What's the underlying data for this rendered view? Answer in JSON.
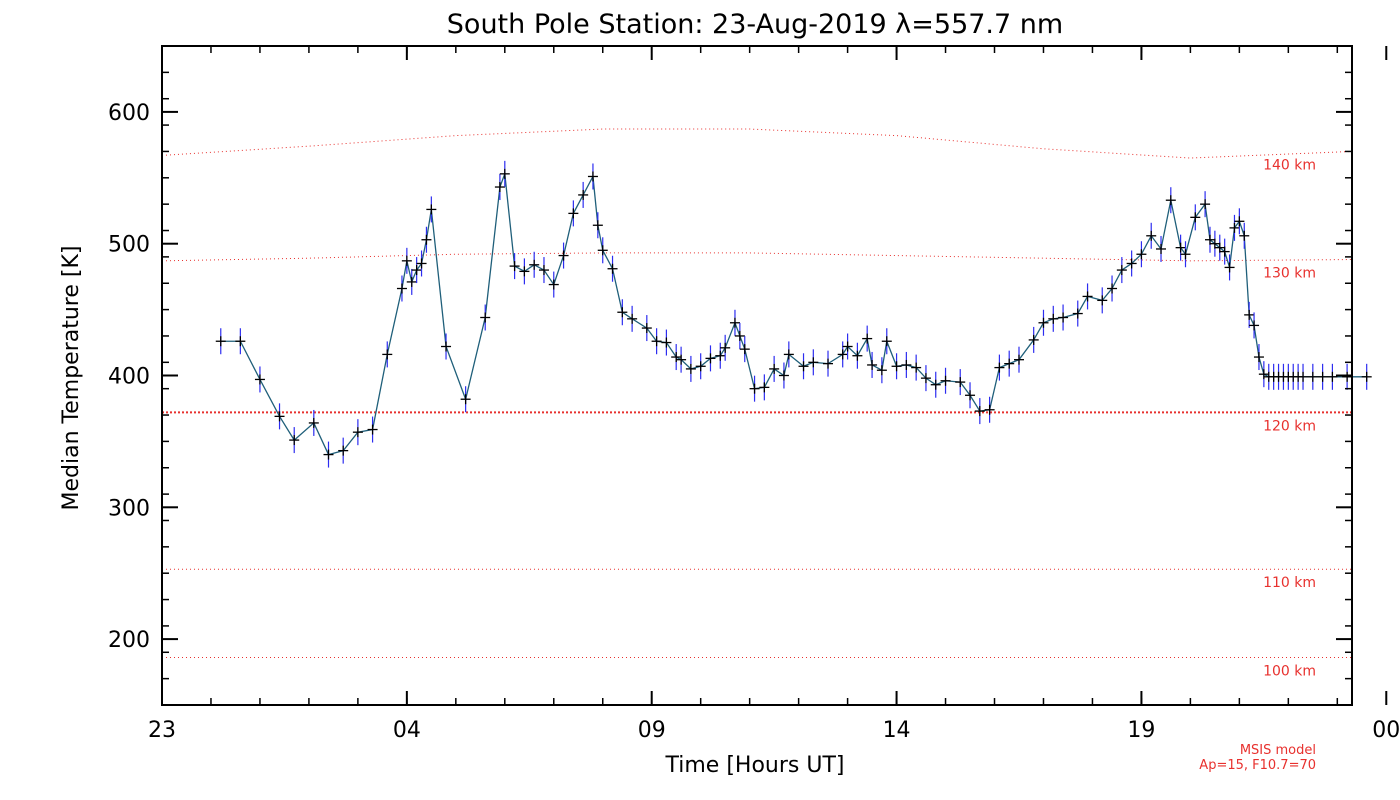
{
  "chart_data": {
    "type": "line",
    "title": "South Pole Station: 23-Aug-2019 λ=557.7 nm",
    "xlabel": "Time [Hours UT]",
    "ylabel": "Median Temperature [K]",
    "xlim": [
      23,
      47.3
    ],
    "ylim": [
      150,
      650
    ],
    "x_ticks": [
      {
        "value": 23,
        "label": "23"
      },
      {
        "value": 28,
        "label": "04"
      },
      {
        "value": 33,
        "label": "09"
      },
      {
        "value": 38,
        "label": "14"
      },
      {
        "value": 43,
        "label": "19"
      },
      {
        "value": 48,
        "label": "00"
      }
    ],
    "y_ticks": [
      200,
      300,
      400,
      500,
      600
    ],
    "colors": {
      "series_line": "#1f5f7a",
      "error_bar": "#2d2df0",
      "marker": "#000000",
      "msis": "#e8312e"
    },
    "series": [
      {
        "x": [
          24.2,
          24.6,
          25.0,
          25.4,
          25.7,
          26.1,
          26.4,
          26.7,
          27.0,
          27.3,
          27.6,
          27.9,
          28.0,
          28.1,
          28.2,
          28.3,
          28.4,
          28.5,
          28.8,
          29.2,
          29.6,
          29.9,
          30.0,
          30.2,
          30.4,
          30.6,
          30.8,
          31.0,
          31.2,
          31.4,
          31.6,
          31.8,
          31.9,
          32.0,
          32.2,
          32.4,
          32.6,
          32.9,
          33.1,
          33.3,
          33.5,
          33.6,
          33.8,
          34.0,
          34.2,
          34.4,
          34.5,
          34.7,
          34.8,
          34.9,
          35.1,
          35.3,
          35.5,
          35.7,
          35.8,
          36.1,
          36.3,
          36.6,
          36.9,
          37.0,
          37.2,
          37.4,
          37.5,
          37.7,
          37.8,
          38.0,
          38.2,
          38.4,
          38.6,
          38.8,
          39.0,
          39.3,
          39.5,
          39.7,
          39.9,
          40.1,
          40.3,
          40.5,
          40.8,
          41.0,
          41.2,
          41.4,
          41.7,
          41.9,
          42.2,
          42.4,
          42.6,
          42.8,
          43.0,
          43.2,
          43.4,
          43.6,
          43.8,
          43.9,
          44.1,
          44.3,
          44.4,
          44.5,
          44.6,
          44.7,
          44.8,
          44.9,
          45.0,
          45.1,
          45.2,
          45.3,
          45.4,
          45.5,
          45.6,
          45.7,
          45.8,
          45.9,
          46.0,
          46.1,
          46.2,
          46.3,
          46.5,
          46.7,
          46.9,
          47.2,
          47.6
        ],
        "values": [
          426,
          426,
          397,
          369,
          351,
          364,
          340,
          343,
          357,
          359,
          416,
          466,
          487,
          471,
          480,
          485,
          503,
          526,
          422,
          382,
          444,
          543,
          553,
          483,
          479,
          484,
          480,
          469,
          491,
          523,
          537,
          551,
          514,
          495,
          481,
          448,
          443,
          436,
          426,
          425,
          414,
          412,
          405,
          407,
          413,
          415,
          421,
          440,
          430,
          420,
          390,
          391,
          405,
          400,
          416,
          407,
          410,
          409,
          416,
          422,
          415,
          428,
          408,
          404,
          426,
          407,
          408,
          406,
          398,
          393,
          396,
          395,
          385,
          373,
          374,
          406,
          409,
          412,
          427,
          440,
          443,
          444,
          447,
          460,
          457,
          466,
          480,
          485,
          492,
          506,
          496,
          533,
          497,
          492,
          520,
          530,
          503,
          500,
          497,
          494,
          482,
          512,
          517,
          506,
          446,
          438,
          414,
          401,
          399,
          399,
          399,
          399,
          399,
          399,
          399,
          399,
          399,
          399,
          399,
          399,
          399
        ]
      }
    ],
    "msis_curves": [
      {
        "label": "140 km",
        "x": [
          23,
          26,
          29,
          32,
          35,
          38,
          41,
          44,
          47.3
        ],
        "values": [
          567,
          574,
          582,
          587,
          587,
          582,
          572,
          565,
          570
        ]
      },
      {
        "label": "130 km",
        "x": [
          23,
          26,
          29,
          32,
          35,
          38,
          41,
          44,
          47.3
        ],
        "values": [
          487,
          489,
          492,
          493,
          493,
          491,
          489,
          487,
          488
        ]
      },
      {
        "label": "120 km",
        "x": [
          23,
          47.3
        ],
        "values": [
          372,
          372
        ]
      },
      {
        "label": "110 km",
        "x": [
          23,
          47.3
        ],
        "values": [
          253,
          253
        ]
      },
      {
        "label": "100 km",
        "x": [
          23,
          47.3
        ],
        "values": [
          186,
          186
        ]
      }
    ],
    "notes": [
      "MSIS model",
      "Ap=15, F10.7=70"
    ]
  }
}
